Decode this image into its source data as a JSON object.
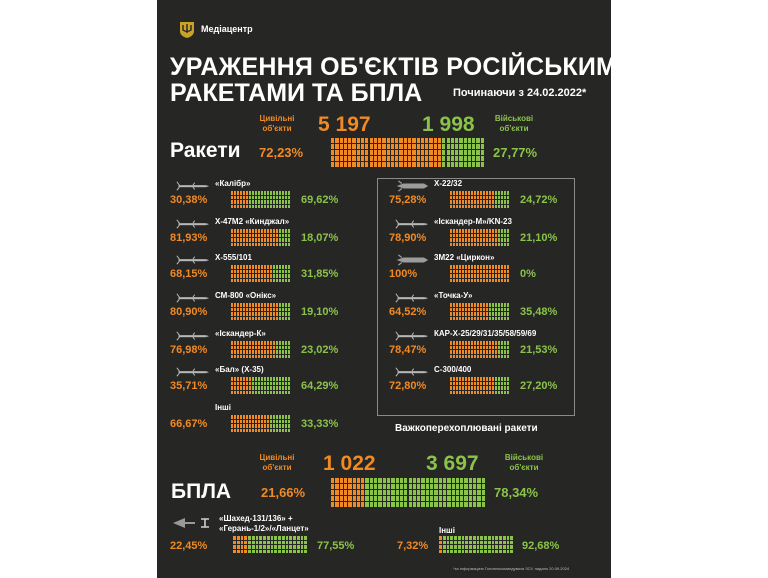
{
  "header": {
    "brand": "Медіацентр",
    "logo_icon": "trident-shield-icon",
    "title_line1": "УРАЖЕННЯ ОБ'ЄКТІВ РОСІЙСЬКИМИ",
    "title_line2": "РАКЕТАМИ ТА БПЛА",
    "since": "Починаючи з 24.02.2022*"
  },
  "colors": {
    "civil": "#f08a24",
    "military": "#8bc34a",
    "background": "#262625"
  },
  "rockets": {
    "heading": "Ракети",
    "civil_label": "Цивільні об'єкти",
    "military_label": "Військові об'єкти",
    "civil_count": "5 197",
    "military_count": "1 998",
    "civil_pct": "72,23%",
    "military_pct": "27,77%"
  },
  "drones": {
    "heading": "БПЛА",
    "civil_label": "Цивільні об'єкти",
    "military_label": "Військові об'єкти",
    "civil_count": "1 022",
    "military_count": "3 697",
    "civil_pct": "21,66%",
    "military_pct": "78,34%"
  },
  "hard_to_intercept_label": "Важкоперехоплювані ракети",
  "footnote": "*за інформацією Головнокомандувача ЗСУ, надано 20.09.2024",
  "chart_data": {
    "type": "bar",
    "stacked": true,
    "orientation": "horizontal",
    "series_names": [
      "Цивільні об'єкти",
      "Військові об'єкти"
    ],
    "groups": [
      {
        "name": "Ракети",
        "totals": [
          5197,
          1998
        ],
        "values": [
          72.23,
          27.77
        ]
      },
      {
        "name": "БПЛА",
        "totals": [
          1022,
          3697
        ],
        "values": [
          21.66,
          78.34
        ]
      }
    ],
    "weapons": [
      {
        "name": "«Калібр»",
        "civil": 30.38,
        "military": 69.62,
        "civil_label": "30,38%",
        "military_label": "69,62%",
        "icon": "cruise-missile-icon"
      },
      {
        "name": "Х-47М2 «Кинджал»",
        "civil": 81.93,
        "military": 18.07,
        "civil_label": "81,93%",
        "military_label": "18,07%",
        "icon": "ballistic-missile-icon"
      },
      {
        "name": "Х-555/101",
        "civil": 68.15,
        "military": 31.85,
        "civil_label": "68,15%",
        "military_label": "31,85%",
        "icon": "cruise-missile-icon"
      },
      {
        "name": "СМ-800 «Онікс»",
        "civil": 80.9,
        "military": 19.1,
        "civil_label": "80,90%",
        "military_label": "19,10%",
        "icon": "cruise-missile-icon"
      },
      {
        "name": "«Іскандер-К»",
        "civil": 76.98,
        "military": 23.02,
        "civil_label": "76,98%",
        "military_label": "23,02%",
        "icon": "cruise-missile-icon"
      },
      {
        "name": "«Бал» (Х-35)",
        "civil": 35.71,
        "military": 64.29,
        "civil_label": "35,71%",
        "military_label": "64,29%",
        "icon": "cruise-missile-icon"
      },
      {
        "name": "Інші",
        "civil": 66.67,
        "military": 33.33,
        "civil_label": "66,67%",
        "military_label": "33,33%",
        "icon": ""
      },
      {
        "name": "Х-22/32",
        "civil": 75.28,
        "military": 24.72,
        "civil_label": "75,28%",
        "military_label": "24,72%",
        "icon": "supersonic-missile-icon"
      },
      {
        "name": "«Іскандер-М»/KN-23",
        "civil": 78.9,
        "military": 21.1,
        "civil_label": "78,90%",
        "military_label": "21,10%",
        "icon": "ballistic-missile-icon"
      },
      {
        "name": "3М22 «Циркон»",
        "civil": 100,
        "military": 0,
        "civil_label": "100%",
        "military_label": "0%",
        "icon": "hypersonic-missile-icon"
      },
      {
        "name": "«Точка-У»",
        "civil": 64.52,
        "military": 35.48,
        "civil_label": "64,52%",
        "military_label": "35,48%",
        "icon": "ballistic-missile-icon"
      },
      {
        "name": "КАР-Х-25/29/31/35/58/59/69",
        "civil": 78.47,
        "military": 21.53,
        "civil_label": "78,47%",
        "military_label": "21,53%",
        "icon": "air-missile-icon"
      },
      {
        "name": "С-300/400",
        "civil": 72.8,
        "military": 27.2,
        "civil_label": "72,80%",
        "military_label": "27,20%",
        "icon": "sam-missile-icon"
      },
      {
        "name": "«Шахед-131/136» + «Герань-1/2»/«Ланцет»",
        "civil": 22.45,
        "military": 77.55,
        "civil_label": "22,45%",
        "military_label": "77,55%",
        "icon": "drone-icon"
      },
      {
        "name": "Інші",
        "civil": 7.32,
        "military": 92.68,
        "civil_label": "7,32%",
        "military_label": "92,68%",
        "icon": ""
      }
    ]
  }
}
